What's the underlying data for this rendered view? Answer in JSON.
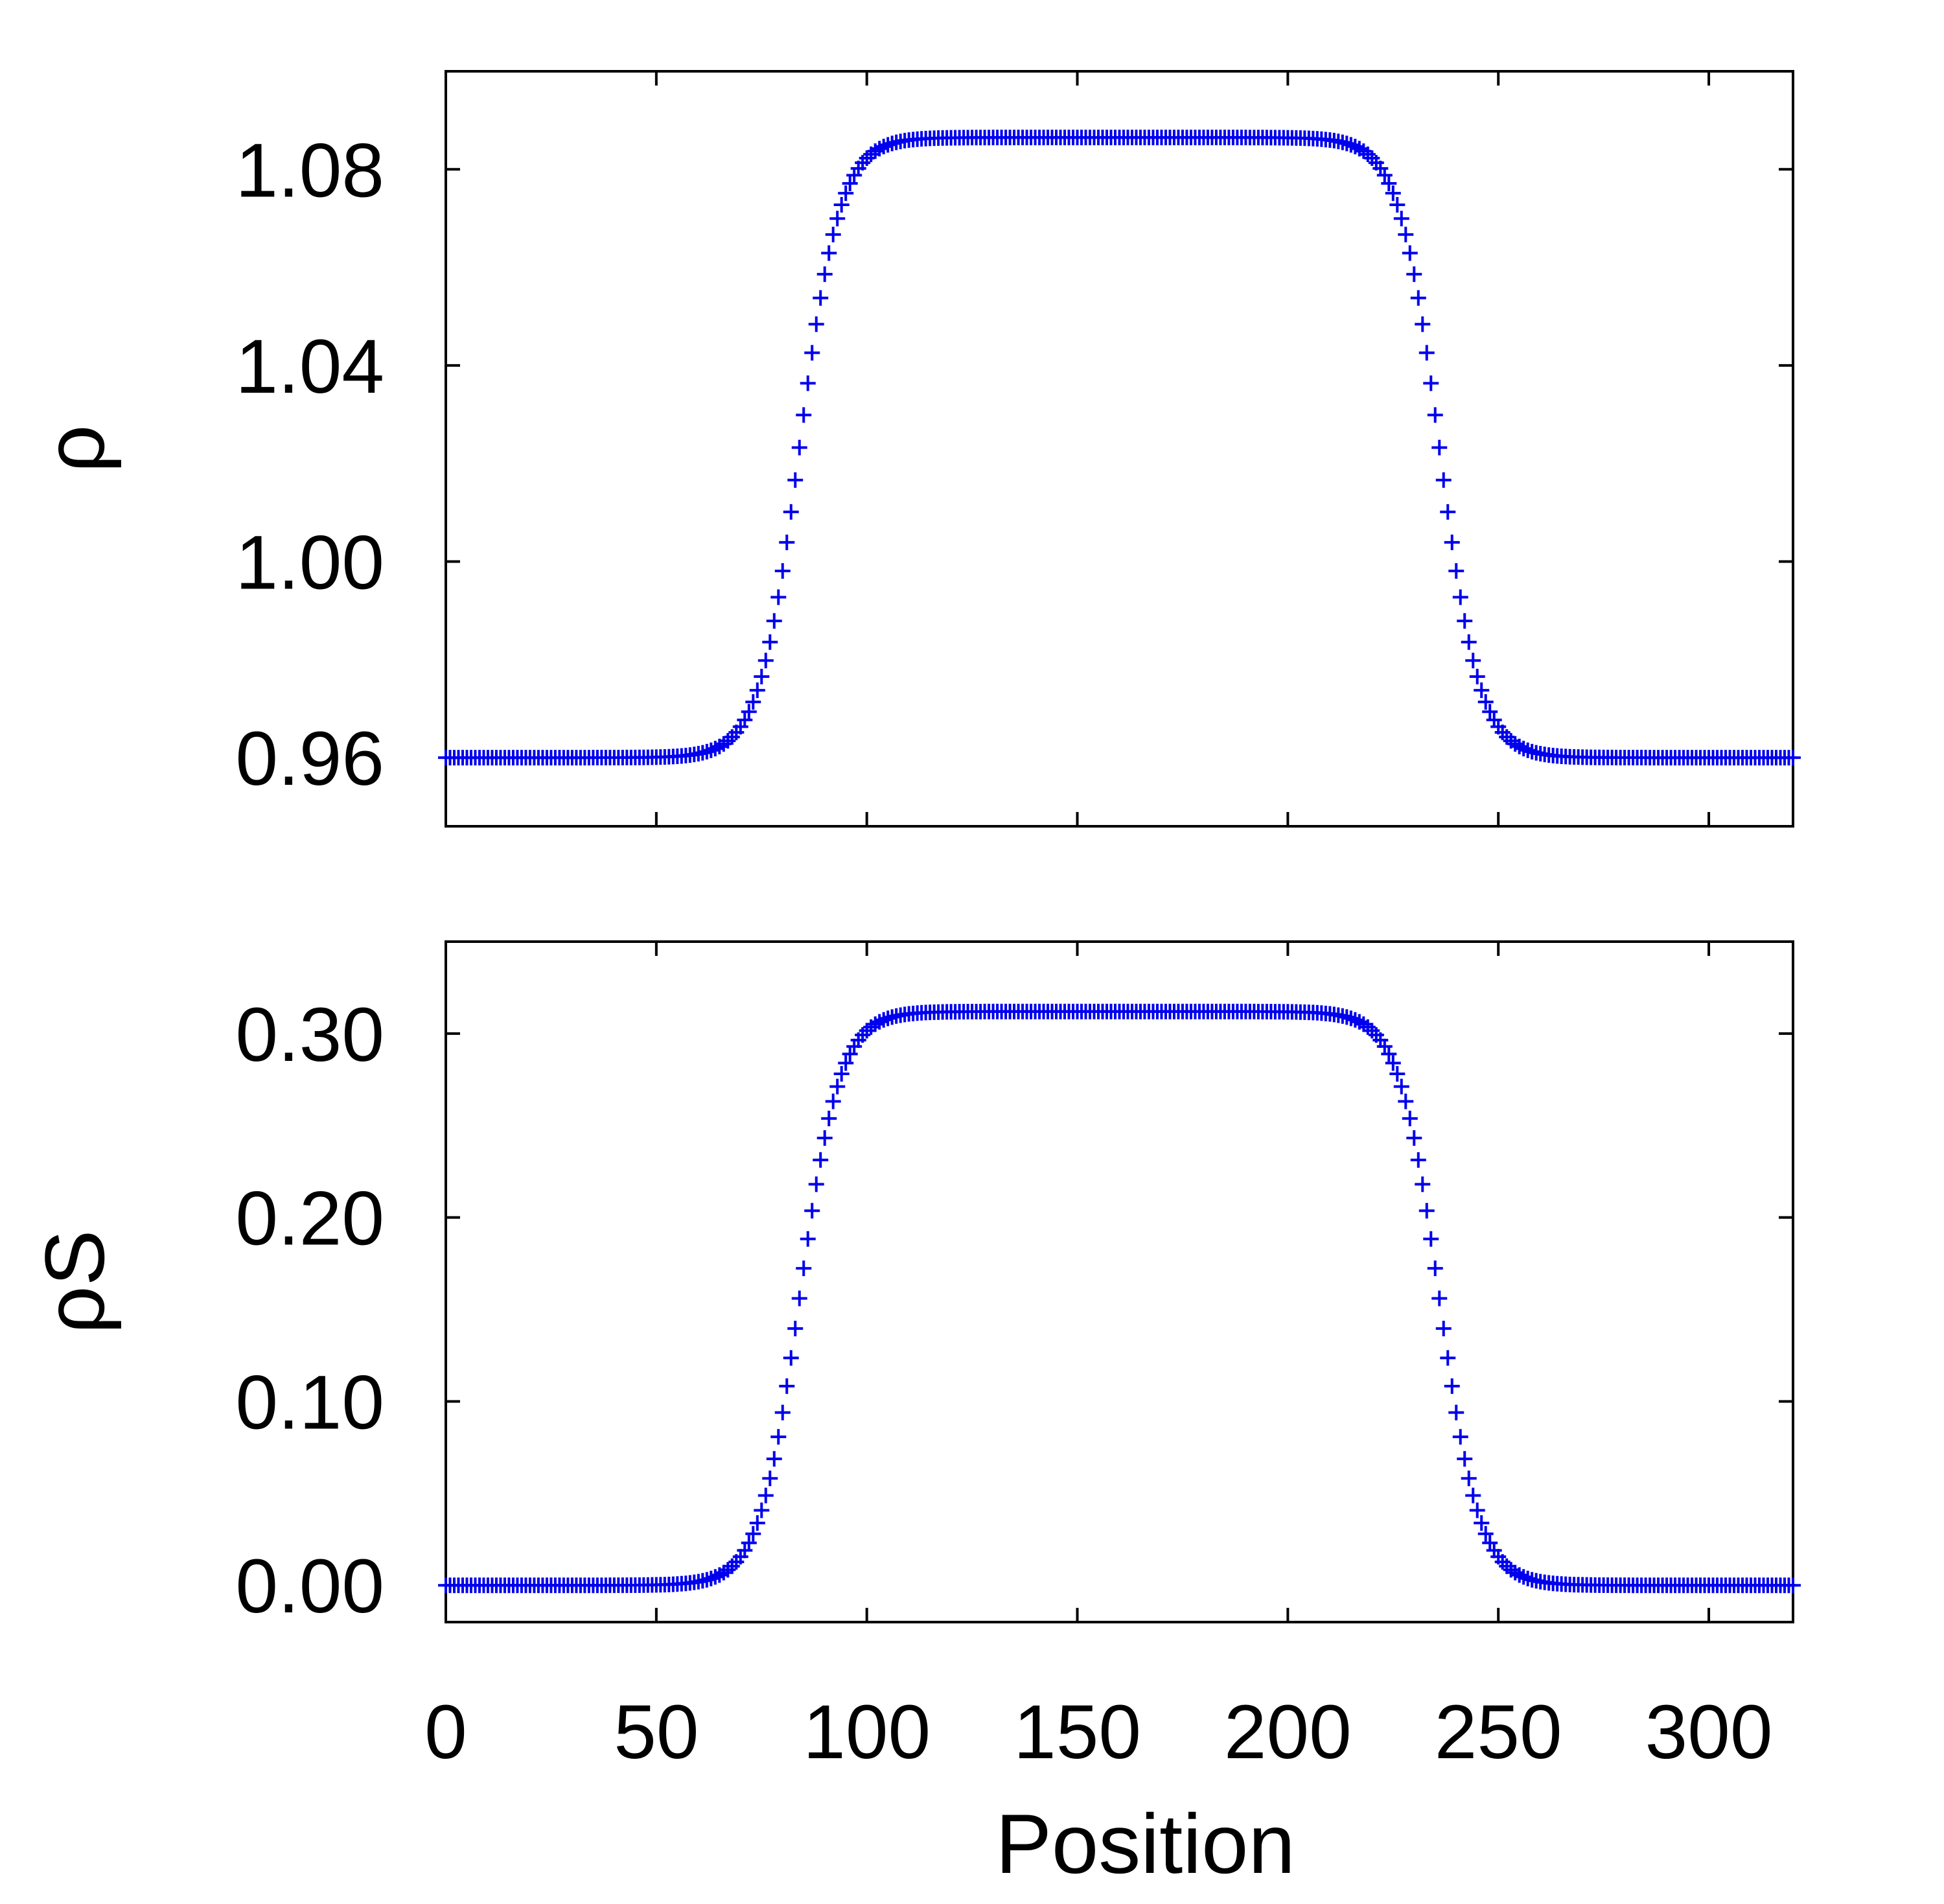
{
  "chart_data": [
    {
      "type": "scatter",
      "marker": "plus",
      "color": "#0000ee",
      "title": "",
      "xlabel": "",
      "ylabel": "ρ",
      "xlim": [
        0,
        320
      ],
      "ylim": [
        0.946,
        1.1
      ],
      "xticks": [
        0,
        50,
        100,
        150,
        200,
        250,
        300
      ],
      "xtick_labels": [
        "",
        "",
        "",
        "",
        "",
        "",
        ""
      ],
      "yticks": [
        0.96,
        1.0,
        1.04,
        1.08
      ],
      "ytick_labels": [
        "0.96",
        "1.00",
        "1.04",
        "1.08"
      ],
      "grid": false,
      "legend": "none",
      "series": [
        {
          "profile": "double_tanh",
          "x_start": 0,
          "x_end": 320,
          "x_step": 1,
          "low": 0.96,
          "high": 1.0865,
          "rise_center": 84,
          "fall_center": 236,
          "width": 9.5
        }
      ]
    },
    {
      "type": "scatter",
      "marker": "plus",
      "color": "#0000ee",
      "title": "",
      "xlabel": "Position",
      "ylabel": "ρS",
      "xlim": [
        0,
        320
      ],
      "ylim": [
        -0.02,
        0.35
      ],
      "xticks": [
        0,
        50,
        100,
        150,
        200,
        250,
        300
      ],
      "xtick_labels": [
        "0",
        "50",
        "100",
        "150",
        "200",
        "250",
        "300"
      ],
      "yticks": [
        0.0,
        0.1,
        0.2,
        0.3
      ],
      "ytick_labels": [
        "0.00",
        "0.10",
        "0.20",
        "0.30"
      ],
      "grid": false,
      "legend": "none",
      "series": [
        {
          "profile": "double_tanh",
          "x_start": 0,
          "x_end": 320,
          "x_step": 1,
          "low": 0.0,
          "high": 0.312,
          "rise_center": 84,
          "fall_center": 236,
          "width": 9.5
        }
      ]
    }
  ]
}
